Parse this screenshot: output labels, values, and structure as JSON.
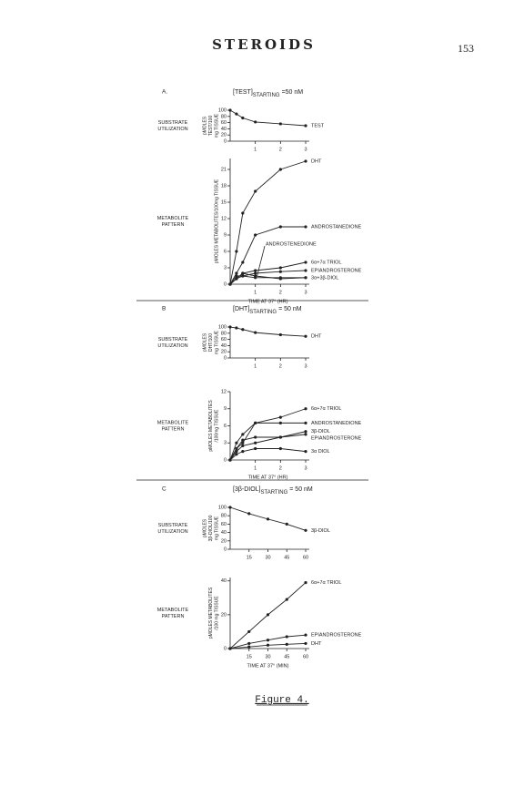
{
  "header": {
    "title": "STEROIDS",
    "page": "153"
  },
  "chart_data": [
    {
      "type": "line",
      "panel": "A.",
      "title": "[TEST]",
      "title_sub": "STARTING",
      "title_suffix": "=50 nM",
      "row_label": [
        "SUBSTRATE",
        "UTILIZATION"
      ],
      "y_label": [
        "pMOLES",
        "TEST/100",
        "mg TISSUE"
      ],
      "x": [
        0,
        0.25,
        0.5,
        1,
        2,
        3
      ],
      "xlim": [
        0,
        3
      ],
      "xticks": [
        1,
        2,
        3
      ],
      "ylim": [
        0,
        100
      ],
      "yticks": [
        0,
        20,
        40,
        60,
        80,
        100
      ],
      "series": [
        {
          "name": "TEST",
          "color": "#222222",
          "values": [
            100,
            88,
            75,
            62,
            56,
            50
          ]
        }
      ]
    },
    {
      "type": "line",
      "row_label": [
        "METABOLITE",
        "PATTERN"
      ],
      "y_label": [
        "pMOLES METABOLITES/100mg TISSUE"
      ],
      "x_label": "TIME AT 37° (HR)",
      "x": [
        0,
        0.25,
        0.5,
        1,
        2,
        3
      ],
      "xlim": [
        0,
        3
      ],
      "xticks": [
        1,
        2,
        3
      ],
      "ylim": [
        0,
        23
      ],
      "yticks": [
        0,
        3,
        6,
        9,
        12,
        15,
        18,
        21
      ],
      "series": [
        {
          "name": "DHT",
          "color": "#222222",
          "values": [
            0,
            6,
            13,
            17,
            21,
            22.5
          ]
        },
        {
          "name": "ANDROSTANEDIONE",
          "color": "#222222",
          "values": [
            0,
            2,
            4,
            9,
            10.5,
            10.5
          ]
        },
        {
          "name": "ANDROSTENEDIONE",
          "color": "#222222",
          "values": [
            0,
            1.5,
            1.5,
            1.2,
            1.2,
            1.2
          ]
        },
        {
          "name": "6α+7α TRIOL",
          "color": "#222222",
          "values": [
            0,
            1,
            2,
            2.5,
            3,
            4
          ]
        },
        {
          "name": "EPIANDROSTERONE",
          "color": "#222222",
          "values": [
            0,
            1,
            1.5,
            2,
            2.3,
            2.5
          ]
        },
        {
          "name": "3α+3β-DIOL",
          "color": "#222222",
          "values": [
            0,
            1,
            2,
            1.5,
            1,
            1.2
          ]
        }
      ]
    },
    {
      "type": "line",
      "panel": "B",
      "title": "[DHT]",
      "title_sub": "STARTING",
      "title_suffix": "= 50 nM",
      "row_label": [
        "SUBSTRATE",
        "UTILIZATION"
      ],
      "y_label": [
        "pMOLES",
        "DHT/100",
        "mg TISSUE"
      ],
      "x": [
        0,
        0.25,
        0.5,
        1,
        2,
        3
      ],
      "xlim": [
        0,
        3
      ],
      "xticks": [
        1,
        2,
        3
      ],
      "ylim": [
        0,
        100
      ],
      "yticks": [
        0,
        20,
        40,
        60,
        80,
        100
      ],
      "series": [
        {
          "name": "DHT",
          "color": "#222222",
          "values": [
            100,
            97,
            92,
            82,
            75,
            70
          ]
        }
      ]
    },
    {
      "type": "line",
      "row_label": [
        "METABOLITE",
        "PATTERN"
      ],
      "y_label": [
        "pMOLES METABOLITES",
        "/100mg TISSUE"
      ],
      "x_label": "TIME AT 37° (HR)",
      "x": [
        0,
        0.25,
        0.5,
        1,
        2,
        3
      ],
      "xlim": [
        0,
        3
      ],
      "xticks": [
        1,
        2,
        3
      ],
      "ylim": [
        0,
        12
      ],
      "yticks": [
        0,
        3,
        6,
        9,
        12
      ],
      "series": [
        {
          "name": "6α+7α TRIOL",
          "color": "#222222",
          "values": [
            0,
            2,
            3,
            6.5,
            7.5,
            9
          ]
        },
        {
          "name": "ANDROSTANEDIONE",
          "color": "#222222",
          "values": [
            0,
            3,
            4.5,
            6.5,
            6.5,
            6.5
          ]
        },
        {
          "name": "3β-DIOL",
          "color": "#222222",
          "values": [
            0,
            2,
            3.5,
            4,
            4,
            5
          ]
        },
        {
          "name": "EPIANDROSTERONE",
          "color": "#222222",
          "values": [
            0,
            1.5,
            2.5,
            3,
            4,
            4.5
          ]
        },
        {
          "name": "3α DIOL",
          "color": "#222222",
          "values": [
            0,
            1,
            1.5,
            2,
            2,
            1.5
          ]
        }
      ]
    },
    {
      "type": "line",
      "panel": "C",
      "title": "[3β-DIOL]",
      "title_sub": "STARTING",
      "title_suffix": "= 50 nM",
      "row_label": [
        "SUBSTRATE",
        "UTILIZATION"
      ],
      "y_label": [
        "pMOLES",
        "3β-DIOL/100",
        "mg TISSUE"
      ],
      "x": [
        0,
        15,
        30,
        45,
        60
      ],
      "xlim": [
        0,
        60
      ],
      "xticks": [
        15,
        30,
        45,
        60
      ],
      "ylim": [
        0,
        100
      ],
      "yticks": [
        0,
        20,
        40,
        60,
        80,
        100
      ],
      "series": [
        {
          "name": "3β-DIOL",
          "color": "#222222",
          "values": [
            100,
            85,
            72,
            60,
            45
          ]
        }
      ]
    },
    {
      "type": "line",
      "row_label": [
        "METABOLITE",
        "PATTERN"
      ],
      "y_label": [
        "pMOLES METABOLITES",
        "/100 mg TISSUE"
      ],
      "x_label": "TIME AT 37° (MIN)",
      "x": [
        0,
        15,
        30,
        45,
        60
      ],
      "xlim": [
        0,
        60
      ],
      "xticks": [
        15,
        30,
        45,
        60
      ],
      "ylim": [
        0,
        42
      ],
      "yticks": [
        0,
        20,
        40
      ],
      "series": [
        {
          "name": "6α+7α TRIOL",
          "color": "#222222",
          "values": [
            0,
            10,
            20,
            29,
            39
          ]
        },
        {
          "name": "EPIANDROSTERONE",
          "color": "#222222",
          "values": [
            0,
            3,
            5,
            7,
            8
          ]
        },
        {
          "name": "DHT",
          "color": "#222222",
          "values": [
            0,
            1,
            2,
            2.5,
            3
          ]
        }
      ]
    }
  ],
  "caption": "Figure 4."
}
